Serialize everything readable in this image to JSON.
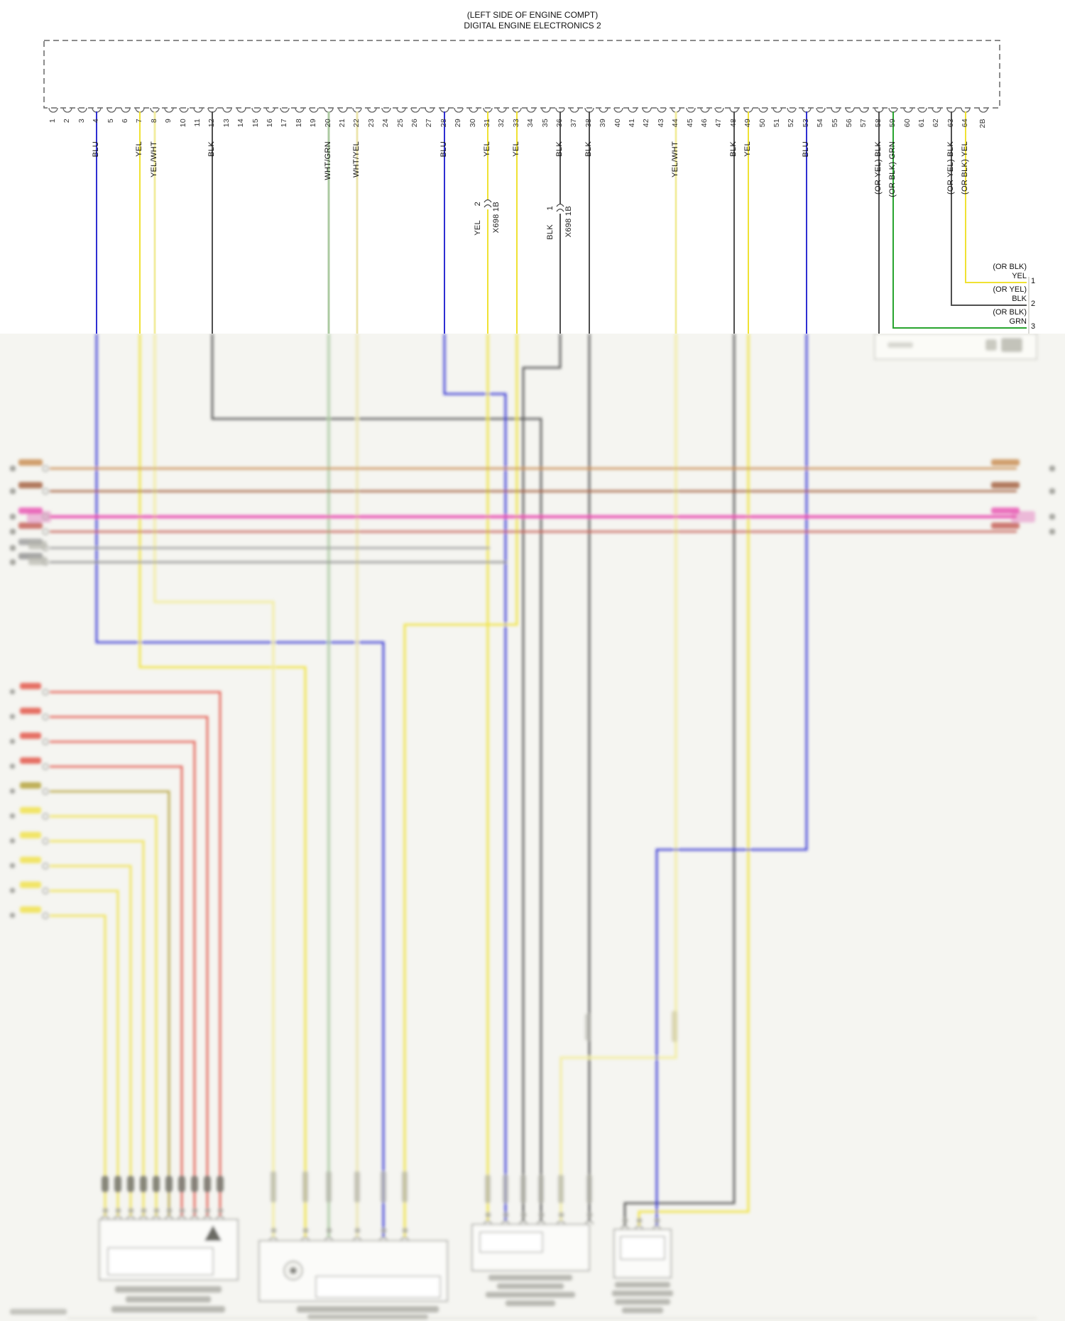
{
  "header": {
    "location_line": "(LEFT SIDE OF ENGINE COMPT)",
    "title_line": "DIGITAL ENGINE ELECTRONICS 2"
  },
  "ecu_connector": {
    "pins": [
      "1",
      "2",
      "3",
      "4",
      "5",
      "6",
      "7",
      "8",
      "9",
      "10",
      "11",
      "12",
      "13",
      "14",
      "15",
      "16",
      "17",
      "18",
      "19",
      "20",
      "21",
      "22",
      "23",
      "24",
      "25",
      "26",
      "27",
      "28",
      "29",
      "30",
      "31",
      "32",
      "33",
      "34",
      "35",
      "36",
      "37",
      "38",
      "39",
      "40",
      "41",
      "42",
      "43",
      "44",
      "45",
      "46",
      "47",
      "48",
      "49",
      "50",
      "51",
      "52",
      "53",
      "54",
      "55",
      "56",
      "57",
      "58",
      "59",
      "60",
      "61",
      "62",
      "63",
      "64",
      "2B"
    ]
  },
  "pin_wires": [
    {
      "pin": 4,
      "label": "BLU",
      "color": "#2e2ed2"
    },
    {
      "pin": 7,
      "label": "YEL",
      "color": "#f0e233"
    },
    {
      "pin": 8,
      "label": "YEL/WHT",
      "color": "#f2eda0"
    },
    {
      "pin": 12,
      "label": "BLK",
      "color": "#4f4f4f"
    },
    {
      "pin": 20,
      "label": "WHT/GRN",
      "color": "#accaa2"
    },
    {
      "pin": 22,
      "label": "WHT/YEL",
      "color": "#ece5ae"
    },
    {
      "pin": 28,
      "label": "BLU",
      "color": "#2e2ed2"
    },
    {
      "pin": 31,
      "label": "YEL",
      "color": "#f0e233"
    },
    {
      "pin": 33,
      "label": "YEL",
      "color": "#f0e233"
    },
    {
      "pin": 36,
      "label": "BLK",
      "color": "#4f4f4f"
    },
    {
      "pin": 38,
      "label": "BLK",
      "color": "#4f4f4f"
    },
    {
      "pin": 44,
      "label": "YEL/WHT",
      "color": "#f2eda0"
    },
    {
      "pin": 48,
      "label": "BLK",
      "color": "#4f4f4f"
    },
    {
      "pin": 49,
      "label": "YEL",
      "color": "#f0e233"
    },
    {
      "pin": 53,
      "label": "BLU",
      "color": "#2e2ed2"
    },
    {
      "pin": 58,
      "label": "(OR YEL) BLK",
      "color": "#4f4f4f"
    },
    {
      "pin": 59,
      "label": "(OR BLK) GRN",
      "color": "#28a42e"
    },
    {
      "pin": 63,
      "label": "(OR YEL) BLK",
      "color": "#4f4f4f"
    },
    {
      "pin": 64,
      "label": "(OR BLK) YEL",
      "color": "#f0e233"
    }
  ],
  "inline_connectors": [
    {
      "at_pin": 31,
      "wire_label": "YEL",
      "terminal": "2",
      "connector_id": "X698 1B"
    },
    {
      "at_pin": 36,
      "wire_label": "BLK",
      "terminal": "1",
      "connector_id": "X698 1B"
    }
  ],
  "right_edge_terminations": [
    {
      "alt": "(OR BLK)",
      "label": "YEL",
      "terminal": "1"
    },
    {
      "alt": "(OR YEL)",
      "label": "BLK",
      "terminal": "2"
    },
    {
      "alt": "(OR BLK)",
      "label": "GRN",
      "terminal": "3"
    }
  ],
  "blurred_region": {
    "note": "Lower portion of the source screenshot is out of focus; its small labels are illegible and are rendered as blurred placeholders.",
    "bus_wires": [
      {
        "color": "#c7894c",
        "thick": false
      },
      {
        "color": "#a05a38",
        "thick": false
      },
      {
        "color": "#e84fb0",
        "thick": true
      },
      {
        "color": "#c35b51",
        "thick": false
      },
      {
        "color": "#9a9a9a",
        "thick": false
      },
      {
        "color": "#8d8d8d",
        "thick": false
      }
    ],
    "fan_wires": [
      {
        "color": "#e3574b"
      },
      {
        "color": "#e3574b"
      },
      {
        "color": "#e3574b"
      },
      {
        "color": "#e3574b"
      },
      {
        "color": "#b5a33c"
      },
      {
        "color": "#f0e24e"
      },
      {
        "color": "#f0e24e"
      },
      {
        "color": "#f0e24e"
      },
      {
        "color": "#f0e24e"
      },
      {
        "color": "#f0e24e"
      }
    ],
    "component_count": 4
  }
}
